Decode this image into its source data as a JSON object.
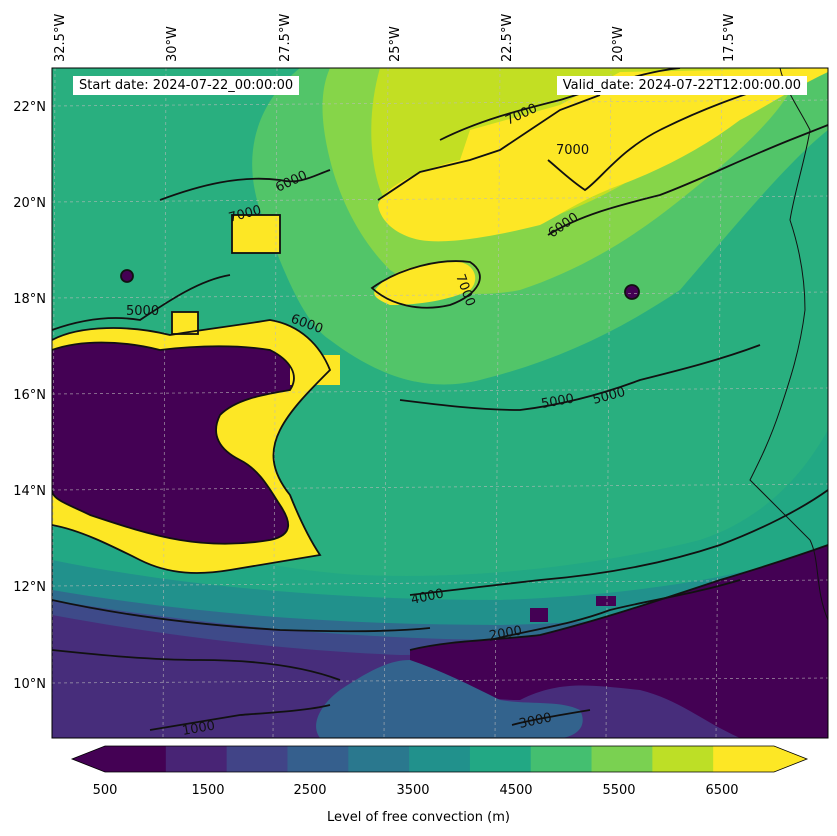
{
  "map": {
    "start_date": "Start date: 2024-07-22_00:00:00",
    "valid_date": "Valid_date: 2024-07-22T12:00:00.00",
    "lon_labels": [
      "32.5°W",
      "30°W",
      "27.5°W",
      "25°W",
      "22.5°W",
      "20°W",
      "17.5°W"
    ],
    "lat_labels": [
      "22°N",
      "20°N",
      "18°N",
      "16°N",
      "14°N",
      "12°N",
      "10°N"
    ],
    "contour_labels": [
      "7000",
      "7000",
      "6000",
      "7000",
      "6000",
      "7000",
      "5000",
      "5000",
      "5000",
      "4000",
      "2000",
      "1000",
      "3000",
      "6000"
    ],
    "colormap": "viridis"
  },
  "colorbar": {
    "title": "Level of free convection (m)",
    "tick_labels": [
      "500",
      "1500",
      "2500",
      "3500",
      "4500",
      "5500",
      "6500"
    ],
    "colors": [
      "#440154",
      "#482475",
      "#414487",
      "#355f8d",
      "#2a788e",
      "#21918c",
      "#22a884",
      "#44bf70",
      "#7ad151",
      "#bddf26",
      "#fde725"
    ]
  }
}
